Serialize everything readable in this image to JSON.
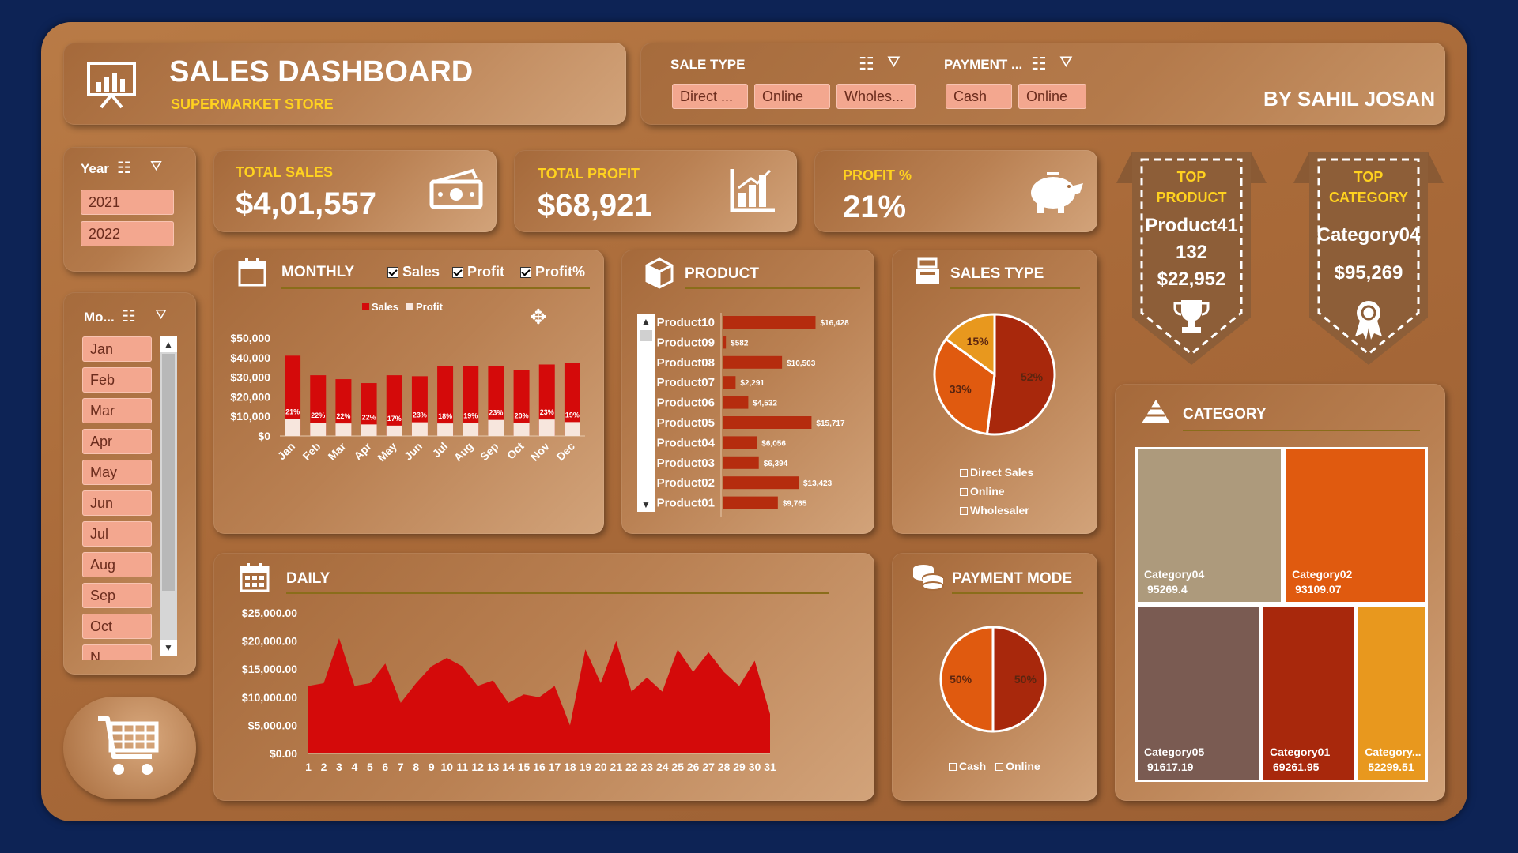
{
  "header": {
    "title": "SALES DASHBOARD",
    "subtitle": "SUPERMARKET STORE",
    "author": "BY SAHIL JOSAN"
  },
  "slicers": {
    "sale_type": {
      "label": "SALE TYPE",
      "items": [
        "Direct ...",
        "Online",
        "Wholes..."
      ]
    },
    "payment": {
      "label": "PAYMENT ...",
      "items": [
        "Cash",
        "Online"
      ]
    },
    "year": {
      "label": "Year",
      "items": [
        "2021",
        "2022"
      ]
    },
    "month": {
      "label": "Mo...",
      "items": [
        "Jan",
        "Feb",
        "Mar",
        "Apr",
        "May",
        "Jun",
        "Jul",
        "Aug",
        "Sep",
        "Oct",
        "N..."
      ]
    }
  },
  "kpis": {
    "total_sales": {
      "label": "TOTAL SALES",
      "value": "$4,01,557"
    },
    "total_profit": {
      "label": "TOTAL PROFIT",
      "value": "$68,921"
    },
    "profit_pct": {
      "label": "PROFIT %",
      "value": "21%"
    }
  },
  "top_product": {
    "label1": "TOP",
    "label2": "PRODUCT",
    "name": "Product41",
    "qty": "132",
    "value": "$22,952"
  },
  "top_category": {
    "label1": "TOP",
    "label2": "CATEGORY",
    "name": "Category04",
    "value": "$95,269"
  },
  "sections": {
    "monthly": "MONTHLY",
    "product": "PRODUCT",
    "sales_type": "SALES TYPE",
    "category": "CATEGORY",
    "daily": "DAILY",
    "payment_mode": "PAYMENT MODE"
  },
  "monthly_toggles": [
    "Sales",
    "Profit",
    "Profit%"
  ],
  "colors": {
    "sales": "#d40a0a",
    "profit": "#f7e6dd",
    "pie_dark": "#a8280c",
    "pie_orange": "#e05a0f",
    "pie_amber": "#e8981e"
  },
  "chart_data": [
    {
      "type": "bar",
      "id": "monthly",
      "categories": [
        "Jan",
        "Feb",
        "Mar",
        "Apr",
        "May",
        "Jun",
        "Jul",
        "Aug",
        "Sep",
        "Oct",
        "Nov",
        "Dec"
      ],
      "series": [
        {
          "name": "Sales",
          "values": [
            41000,
            31000,
            29000,
            27000,
            31000,
            30500,
            35500,
            35500,
            35500,
            33500,
            36500,
            37500
          ]
        },
        {
          "name": "Profit",
          "values": [
            8600,
            6800,
            6400,
            5900,
            5300,
            7000,
            6400,
            6700,
            8200,
            6700,
            8400,
            7100
          ]
        }
      ],
      "data_labels": [
        "21%",
        "22%",
        "22%",
        "22%",
        "17%",
        "23%",
        "18%",
        "19%",
        "23%",
        "20%",
        "23%",
        "19%"
      ],
      "yticks": [
        "$50,000",
        "$40,000",
        "$30,000",
        "$20,000",
        "$10,000",
        "$0"
      ],
      "ylim": [
        0,
        50000
      ]
    },
    {
      "type": "bar",
      "id": "product",
      "orientation": "horizontal",
      "categories": [
        "Product10",
        "Product09",
        "Product08",
        "Product07",
        "Product06",
        "Product05",
        "Product04",
        "Product03",
        "Product02",
        "Product01"
      ],
      "values": [
        16428,
        582,
        10503,
        2291,
        4532,
        15717,
        6056,
        6394,
        13423,
        9765
      ],
      "data_labels": [
        "$16,428",
        "$582",
        "$10,503",
        "$2,291",
        "$4,532",
        "$15,717",
        "$6,056",
        "$6,394",
        "$13,423",
        "$9,765"
      ]
    },
    {
      "type": "pie",
      "id": "sales_type",
      "labels": [
        "Direct Sales",
        "Online",
        "Wholesaler"
      ],
      "values": [
        52,
        33,
        15
      ],
      "data_labels": [
        "52%",
        "33%",
        "15%"
      ]
    },
    {
      "type": "area",
      "id": "daily",
      "x": [
        1,
        2,
        3,
        4,
        5,
        6,
        7,
        8,
        9,
        10,
        11,
        12,
        13,
        14,
        15,
        16,
        17,
        18,
        19,
        20,
        21,
        22,
        23,
        24,
        25,
        26,
        27,
        28,
        29,
        30,
        31
      ],
      "values": [
        12000,
        12500,
        20500,
        12000,
        12500,
        16000,
        9000,
        12500,
        15500,
        17000,
        15500,
        12000,
        13000,
        9000,
        10500,
        10000,
        12000,
        5000,
        18500,
        12500,
        20000,
        11000,
        13500,
        11000,
        18500,
        14500,
        18000,
        14500,
        12000,
        16500,
        7000
      ],
      "yticks": [
        "$25,000.00",
        "$20,000.00",
        "$15,000.00",
        "$10,000.00",
        "$5,000.00",
        "$0.00"
      ],
      "ylim": [
        0,
        25000
      ]
    },
    {
      "type": "pie",
      "id": "payment_mode",
      "labels": [
        "Cash",
        "Online"
      ],
      "values": [
        50,
        50
      ],
      "data_labels": [
        "50%",
        "50%"
      ]
    },
    {
      "type": "heatmap",
      "id": "category_treemap",
      "labels": [
        "Category04",
        "Category02",
        "Category05",
        "Category01",
        "Category..."
      ],
      "values": [
        95269.4,
        93109.07,
        91617.19,
        69261.95,
        52299.51
      ],
      "value_labels": [
        "95269.4",
        "93109.07",
        "91617.19",
        "69261.95",
        "52299.51"
      ]
    }
  ]
}
